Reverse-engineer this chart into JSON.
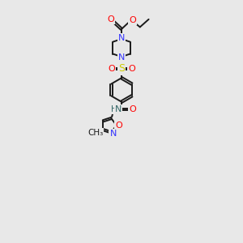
{
  "bg_color": "#e8e8e8",
  "bond_color": "#1a1a1a",
  "N_color": "#3333ff",
  "O_color": "#ff0000",
  "S_color": "#cccc00",
  "NH_color": "#336666",
  "fig_width": 3.0,
  "fig_height": 3.0,
  "dpi": 100,
  "xlim": [
    0,
    10
  ],
  "ylim": [
    0,
    20
  ],
  "lw": 1.4,
  "fs": 8.0
}
